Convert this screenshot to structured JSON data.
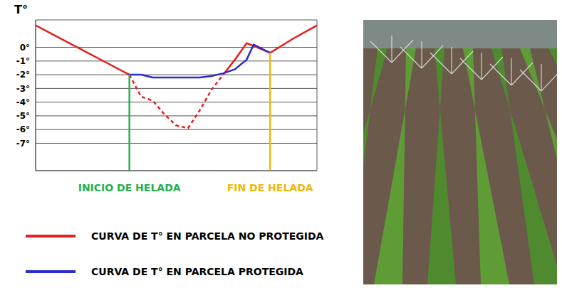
{
  "chart_data": {
    "type": "line",
    "y_label": "T°",
    "x": [
      0,
      1,
      2,
      3,
      4,
      4.5,
      5,
      5.5,
      6,
      6.5,
      7,
      7.5,
      8,
      8.5,
      9,
      9.3,
      10,
      11,
      12
    ],
    "xlim": [
      0,
      12
    ],
    "xticks": [
      0,
      1,
      2,
      3,
      4,
      5,
      6,
      7,
      8,
      9,
      10,
      11,
      12
    ],
    "ylim": [
      -9,
      2
    ],
    "yticks": [
      {
        "value": 0,
        "label": "0°"
      },
      {
        "value": -1,
        "label": "-1°"
      },
      {
        "value": -2,
        "label": "-2°"
      },
      {
        "value": -3,
        "label": "-3°"
      },
      {
        "value": -4,
        "label": "-4°"
      },
      {
        "value": -5,
        "label": "-5°"
      },
      {
        "value": -6,
        "label": "-6°"
      },
      {
        "value": -7,
        "label": "-7°"
      }
    ],
    "grid": true,
    "tick_labels": "y",
    "legend": "bottom",
    "series": [
      {
        "name": "CURVA DE T° EN PARCELA NO PROTEGIDA",
        "color": "#e3201c",
        "line_style": "solid",
        "values": [
          1.6,
          0.7,
          -0.2,
          -1.1,
          -2,
          null,
          null,
          null,
          null,
          null,
          null,
          null,
          -2,
          -0.9,
          0.3,
          0.1,
          -0.4,
          0.65,
          1.6
        ]
      },
      {
        "name": "CURVA DE T° EN PARCELA NO PROTEGIDA",
        "color": "#e3201c",
        "line_style": "dashed",
        "values": [
          null,
          null,
          null,
          null,
          -2,
          -3.6,
          -3.9,
          -4.9,
          -5.7,
          -5.9,
          -4.6,
          -3.1,
          -2,
          null,
          null,
          null,
          null,
          null,
          null
        ]
      },
      {
        "name": "CURVA DE T° EN PARCELA PROTEGIDA",
        "color": "#2b2bd0",
        "line_style": "solid",
        "values": [
          null,
          null,
          null,
          null,
          -2,
          -2,
          -2.2,
          -2.2,
          -2.2,
          -2.2,
          -2.2,
          -2.1,
          -1.9,
          -1.6,
          -0.9,
          0.2,
          -0.4,
          null,
          null
        ]
      }
    ],
    "annotations": [
      {
        "x": 4,
        "label": "INICIO DE HELADA",
        "color": "#22b14c"
      },
      {
        "x": 10,
        "label": "FIN DE HELADA",
        "color": "#f2b705"
      }
    ]
  }
}
